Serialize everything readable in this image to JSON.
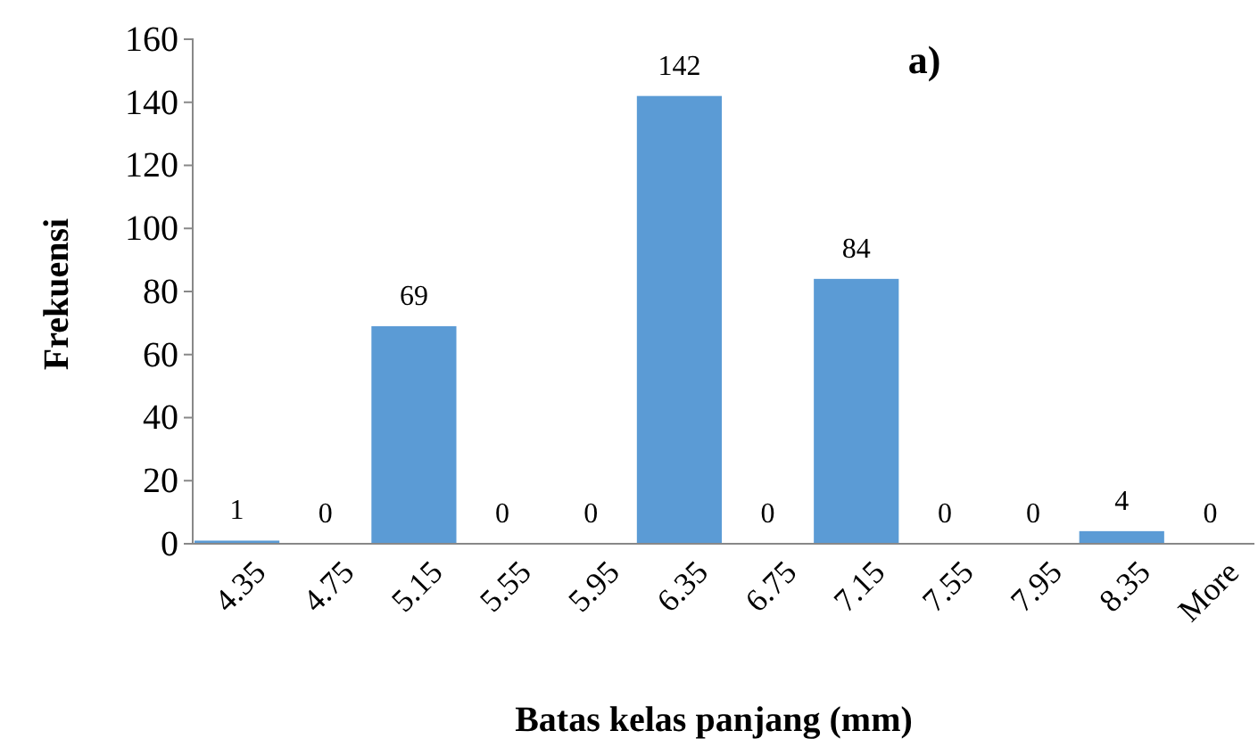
{
  "chart_data": {
    "type": "bar",
    "title": "a)",
    "xlabel": "Batas kelas panjang (mm)",
    "ylabel": "Frekuensi",
    "categories": [
      "4.35",
      "4.75",
      "5.15",
      "5.55",
      "5.95",
      "6.35",
      "6.75",
      "7.15",
      "7.55",
      "7.95",
      "8.35",
      "More"
    ],
    "values": [
      1,
      0,
      69,
      0,
      0,
      142,
      0,
      84,
      0,
      0,
      4,
      0
    ],
    "color": "#5b9bd5",
    "ylim": [
      0,
      160
    ],
    "yticks": [
      0,
      20,
      40,
      60,
      80,
      100,
      120,
      140,
      160
    ],
    "grid": false,
    "data_labels": true
  }
}
